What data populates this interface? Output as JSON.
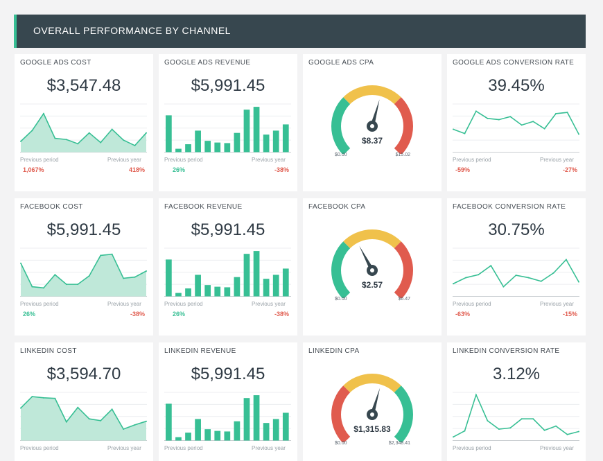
{
  "header": {
    "title": "OVERALL PERFORMANCE BY CHANNEL"
  },
  "colors": {
    "accent": "#37bf94",
    "fill": "#bfe8d9",
    "negative": "#e05b4e",
    "positive": "#37bf94",
    "gauge_green": "#37bf94",
    "gauge_yellow": "#f0c14b",
    "gauge_red": "#e05b4e",
    "header_bg": "#37474f"
  },
  "comparison_labels": {
    "prev_period": "Previous period",
    "prev_year": "Previous year"
  },
  "rows": [
    {
      "cost": {
        "title": "GOOGLE ADS COST",
        "value": "$3,547.48",
        "prev_period": "1,067%",
        "prev_period_dir": "negative",
        "prev_year": "418%",
        "prev_year_dir": "negative"
      },
      "revenue": {
        "title": "GOOGLE ADS REVENUE",
        "value": "$5,991.45",
        "prev_period": "26%",
        "prev_period_dir": "positive",
        "prev_year": "-38%",
        "prev_year_dir": "negative"
      },
      "cpa": {
        "title": "GOOGLE ADS CPA",
        "value": "$8.37",
        "min": "$0.00",
        "max": "$15.02",
        "fraction": 0.557,
        "colors": [
          "gauge_green",
          "gauge_yellow",
          "gauge_red"
        ]
      },
      "conv": {
        "title": "GOOGLE ADS CONVERSION RATE",
        "value": "39.45%",
        "prev_period": "-59%",
        "prev_period_dir": "negative",
        "prev_year": "-27%",
        "prev_year_dir": "negative"
      }
    },
    {
      "cost": {
        "title": "FACEBOOK COST",
        "value": "$5,991.45",
        "prev_period": "26%",
        "prev_period_dir": "positive",
        "prev_year": "-38%",
        "prev_year_dir": "negative"
      },
      "revenue": {
        "title": "FACEBOOK REVENUE",
        "value": "$5,991.45",
        "prev_period": "26%",
        "prev_period_dir": "positive",
        "prev_year": "-38%",
        "prev_year_dir": "negative"
      },
      "cpa": {
        "title": "FACEBOOK CPA",
        "value": "$2.57",
        "min": "$0.00",
        "max": "$6.47",
        "fraction": 0.397,
        "colors": [
          "gauge_green",
          "gauge_yellow",
          "gauge_red"
        ]
      },
      "conv": {
        "title": "FACEBOOK CONVERSION RATE",
        "value": "30.75%",
        "prev_period": "-63%",
        "prev_period_dir": "negative",
        "prev_year": "-15%",
        "prev_year_dir": "negative"
      }
    },
    {
      "cost": {
        "title": "LINKEDIN COST",
        "value": "$3,594.70",
        "prev_period": "",
        "prev_period_dir": "positive",
        "prev_year": "",
        "prev_year_dir": "negative"
      },
      "revenue": {
        "title": "LINKEDIN REVENUE",
        "value": "$5,991.45",
        "prev_period": "",
        "prev_period_dir": "positive",
        "prev_year": "",
        "prev_year_dir": "negative"
      },
      "cpa": {
        "title": "LINKEDIN CPA",
        "value": "$1,315.83",
        "min": "$0.00",
        "max": "$2,348.41",
        "fraction": 0.56,
        "colors": [
          "gauge_red",
          "gauge_yellow",
          "gauge_green"
        ]
      },
      "conv": {
        "title": "LINKEDIN CONVERSION RATE",
        "value": "3.12%",
        "prev_period": "",
        "prev_period_dir": "negative",
        "prev_year": "",
        "prev_year_dir": "negative"
      }
    }
  ],
  "chart_data": [
    {
      "type": "area",
      "title": "GOOGLE ADS COST",
      "values": [
        1.8,
        3.6,
        6.4,
        2.3,
        2.1,
        1.4,
        3.2,
        1.6,
        3.8,
        2.0,
        1.1,
        3.2
      ],
      "ylim": [
        0,
        8
      ]
    },
    {
      "type": "bar",
      "title": "GOOGLE ADS REVENUE",
      "values": [
        6.5,
        0.6,
        1.4,
        3.8,
        2.0,
        1.7,
        1.6,
        3.4,
        7.5,
        8.0,
        3.1,
        3.8,
        4.9
      ],
      "ylim": [
        0,
        8.5
      ]
    },
    {
      "type": "gauge",
      "title": "GOOGLE ADS CPA",
      "value": 8.37,
      "min": 0,
      "max": 15.02
    },
    {
      "type": "line",
      "title": "GOOGLE ADS CONVERSION RATE",
      "values": [
        3.8,
        3.1,
        6.8,
        5.6,
        5.4,
        5.9,
        4.5,
        5.1,
        3.9,
        6.4,
        6.6,
        3.0
      ],
      "ylim": [
        0,
        8
      ]
    },
    {
      "type": "area",
      "title": "FACEBOOK COST",
      "values": [
        5.5,
        1.6,
        1.4,
        3.6,
        2.0,
        2.0,
        3.4,
        6.8,
        7.0,
        3.0,
        3.2,
        4.2
      ],
      "ylim": [
        0,
        8
      ]
    },
    {
      "type": "bar",
      "title": "FACEBOOK REVENUE",
      "values": [
        6.5,
        0.6,
        1.4,
        3.8,
        2.0,
        1.7,
        1.6,
        3.4,
        7.5,
        8.0,
        3.1,
        3.8,
        4.9
      ],
      "ylim": [
        0,
        8.5
      ]
    },
    {
      "type": "gauge",
      "title": "FACEBOOK CPA",
      "value": 2.57,
      "min": 0,
      "max": 6.47
    },
    {
      "type": "line",
      "title": "FACEBOOK CONVERSION RATE",
      "values": [
        2.1,
        3.1,
        3.6,
        5.1,
        1.6,
        3.5,
        3.1,
        2.5,
        3.9,
        6.1,
        2.4
      ],
      "ylim": [
        0,
        8
      ]
    },
    {
      "type": "area",
      "title": "LINKEDIN COST",
      "values": [
        5.4,
        7.3,
        7.1,
        7.0,
        3.1,
        5.5,
        3.6,
        3.3,
        5.2,
        1.9,
        2.6,
        3.2
      ],
      "ylim": [
        0,
        8
      ]
    },
    {
      "type": "bar",
      "title": "LINKEDIN REVENUE",
      "values": [
        6.5,
        0.6,
        1.4,
        3.8,
        2.0,
        1.7,
        1.6,
        3.4,
        7.5,
        8.0,
        3.1,
        3.8,
        4.9
      ],
      "ylim": [
        0,
        8.5
      ]
    },
    {
      "type": "gauge",
      "title": "LINKEDIN CPA",
      "value": 1315.83,
      "min": 0,
      "max": 2348.41
    },
    {
      "type": "line",
      "title": "LINKEDIN CONVERSION RATE",
      "values": [
        0.6,
        1.6,
        7.6,
        3.3,
        1.9,
        2.1,
        3.6,
        3.6,
        1.7,
        2.4,
        1.0,
        1.5
      ],
      "ylim": [
        0,
        8
      ]
    }
  ]
}
